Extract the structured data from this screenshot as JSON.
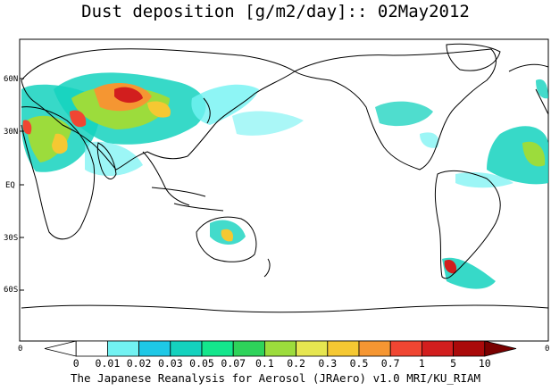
{
  "title": "Dust deposition [g/m2/day]:: 02May2012",
  "footer": "The Japanese Reanalysis for Aerosol (JRAero) v1.0 MRI/KU_RIAM",
  "lat_labels": [
    "60N",
    "30N",
    "EQ",
    "30S",
    "60S"
  ],
  "axis_corner_labels": {
    "bottom_left": "0",
    "bottom_right": "0"
  },
  "colorbar": {
    "tick_labels": [
      "0",
      "0.01",
      "0.02",
      "0.03",
      "0.05",
      "0.07",
      "0.1",
      "0.2",
      "0.3",
      "0.5",
      "0.7",
      "1",
      "5",
      "10"
    ],
    "colors": [
      "#ffffff",
      "#ffffff",
      "#72f2f2",
      "#1ec8e6",
      "#14d2be",
      "#14e68c",
      "#2ed35a",
      "#9cdc3c",
      "#e6e650",
      "#f5c832",
      "#f59632",
      "#f04632",
      "#d21e1e",
      "#aa0a0a",
      "#7a0000"
    ]
  },
  "colors": {
    "land_outline": "#000000",
    "background": "#ffffff"
  }
}
